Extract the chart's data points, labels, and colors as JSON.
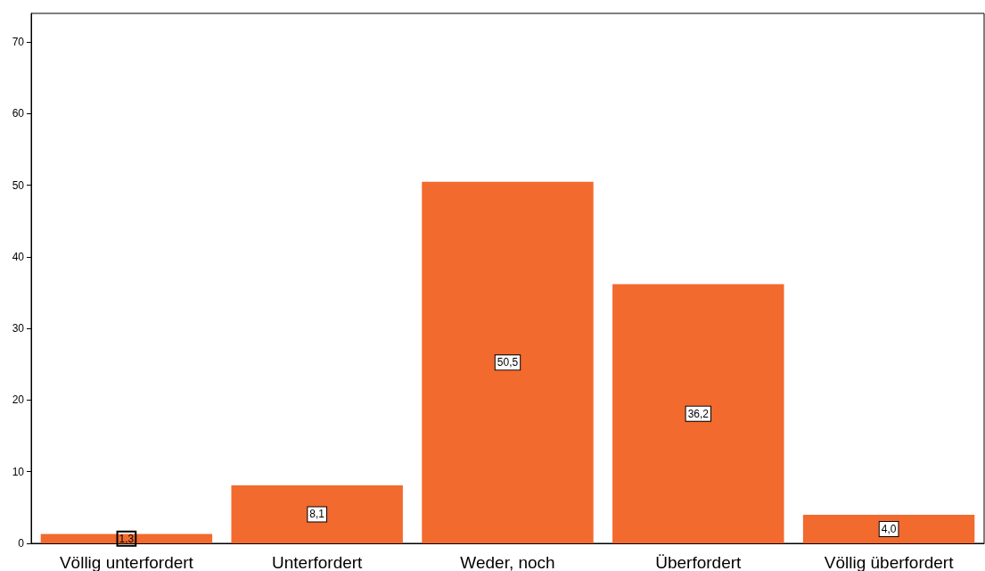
{
  "chart_data": {
    "type": "bar",
    "categories": [
      "Völlig unterfordert",
      "Unterfordert",
      "Weder, noch",
      "Überfordert",
      "Völlig überfordert"
    ],
    "values": [
      1.3,
      8.1,
      50.5,
      36.2,
      4.0
    ],
    "value_labels": [
      "1,3",
      "8,1",
      "50,5",
      "36,2",
      "4,0"
    ],
    "color": "#f26a2e",
    "ylim": [
      0,
      74
    ],
    "yticks": [
      0,
      10,
      20,
      30,
      40,
      50,
      60,
      70
    ],
    "grid": false
  }
}
